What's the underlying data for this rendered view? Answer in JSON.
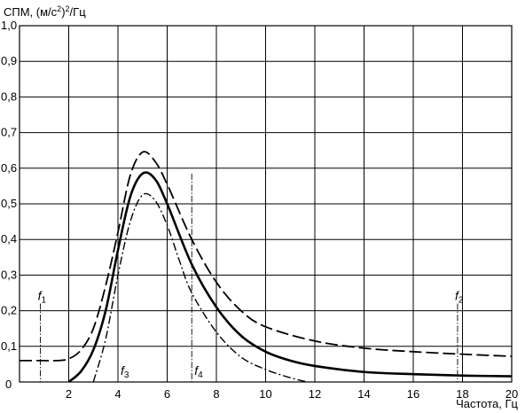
{
  "chart_data": {
    "type": "line",
    "ylabel_main": "СПМ, (м/с",
    "ylabel_sup": "2",
    "ylabel_tail": ")",
    "ylabel_sup2": "2",
    "ylabel_end": "/Гц",
    "xlabel": "Частота, Гц",
    "xlim": [
      0,
      20
    ],
    "ylim": [
      0,
      1.0
    ],
    "x_ticks": [
      "0",
      "2",
      "4",
      "6",
      "8",
      "10",
      "12",
      "14",
      "16",
      "18",
      "20"
    ],
    "y_ticks": [
      "0,1",
      "0,2",
      "0,3",
      "0,4",
      "0,5",
      "0,6",
      "0,7",
      "0,8",
      "0,9",
      "1,0"
    ],
    "grid": true,
    "series": [
      {
        "style": "solid",
        "x": [
          2.0,
          2.5,
          3.0,
          3.5,
          4.0,
          4.5,
          5.0,
          5.5,
          6.0,
          7.0,
          8.0,
          9.0,
          10.0,
          11.0,
          12.0,
          14.0,
          16.0,
          18.0,
          20.0
        ],
        "y": [
          0.0,
          0.03,
          0.09,
          0.2,
          0.37,
          0.52,
          0.585,
          0.57,
          0.5,
          0.33,
          0.21,
          0.13,
          0.085,
          0.06,
          0.045,
          0.028,
          0.022,
          0.018,
          0.016
        ]
      },
      {
        "style": "dashed",
        "x": [
          0.0,
          1.0,
          1.5,
          2.0,
          2.5,
          3.0,
          3.5,
          4.0,
          4.5,
          5.0,
          5.5,
          6.0,
          7.0,
          8.0,
          9.0,
          10.0,
          12.0,
          14.0,
          16.0,
          18.0,
          20.0
        ],
        "y": [
          0.06,
          0.06,
          0.06,
          0.065,
          0.09,
          0.15,
          0.27,
          0.42,
          0.58,
          0.645,
          0.62,
          0.555,
          0.4,
          0.28,
          0.2,
          0.155,
          0.115,
          0.095,
          0.085,
          0.078,
          0.072
        ]
      },
      {
        "style": "dashdot",
        "x": [
          3.0,
          3.5,
          4.0,
          4.5,
          5.0,
          5.5,
          6.0,
          6.5,
          7.0,
          8.0,
          9.0,
          10.0,
          11.0,
          11.7
        ],
        "y": [
          0.0,
          0.12,
          0.3,
          0.45,
          0.525,
          0.51,
          0.44,
          0.34,
          0.25,
          0.14,
          0.07,
          0.035,
          0.012,
          0.0
        ]
      }
    ],
    "markers": [
      {
        "label": "f",
        "sub": "1",
        "x": 0.85,
        "y_top": 0.22,
        "label_pos": "top"
      },
      {
        "label": "f",
        "sub": "2",
        "x": 17.8,
        "y_top": 0.22,
        "label_pos": "top"
      },
      {
        "label": "f",
        "sub": "3",
        "x": 4.0,
        "y_top": 0.585,
        "label_pos": "bottom"
      },
      {
        "label": "f",
        "sub": "4",
        "x": 7.0,
        "y_top": 0.585,
        "label_pos": "bottom"
      }
    ]
  }
}
